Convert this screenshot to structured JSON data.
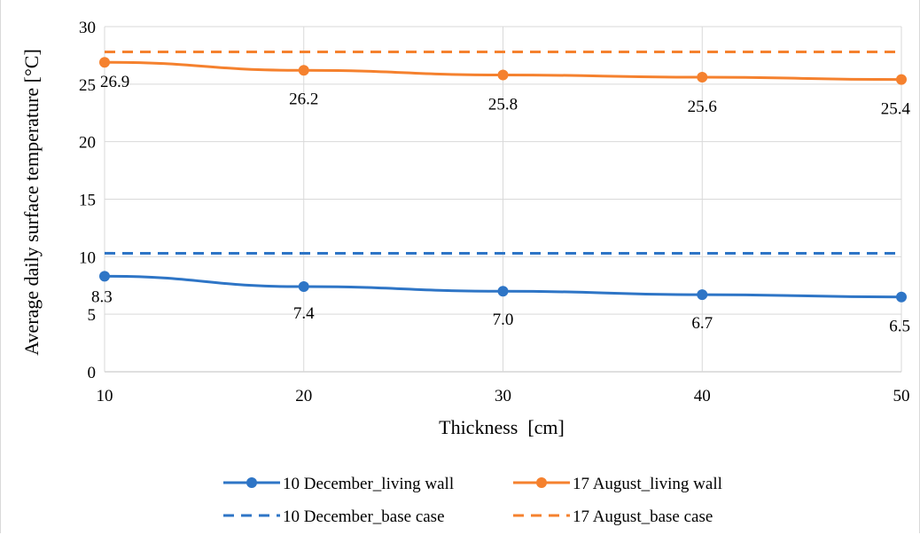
{
  "chart_data": {
    "type": "line",
    "xlabel": "Thickness  [cm]",
    "ylabel": "Average daily surface temperature [°C]",
    "x": [
      10,
      20,
      30,
      40,
      50
    ],
    "xlim": [
      10,
      50
    ],
    "ylim": [
      0,
      30
    ],
    "yticks": [
      0,
      5,
      10,
      15,
      20,
      25,
      30
    ],
    "grid": true,
    "legend_position": "bottom",
    "series": [
      {
        "name": "10 December_living wall",
        "values": [
          8.3,
          7.4,
          7.0,
          6.7,
          6.5
        ],
        "labels": [
          "8.3",
          "7.4",
          "7.0",
          "6.7",
          "6.5"
        ],
        "color": "#2e75c6",
        "style": "solid-markers"
      },
      {
        "name": "17 August_living wall",
        "values": [
          26.9,
          26.2,
          25.8,
          25.6,
          25.4
        ],
        "labels": [
          "26.9",
          "26.2",
          "25.8",
          "25.6",
          "25.4"
        ],
        "color": "#f5812e",
        "style": "solid-markers"
      },
      {
        "name": "10 December_base case",
        "values": [
          10.3,
          10.3,
          10.3,
          10.3,
          10.3
        ],
        "color": "#2e75c6",
        "style": "dashed"
      },
      {
        "name": "17 August_base case",
        "values": [
          27.8,
          27.8,
          27.8,
          27.8,
          27.8
        ],
        "color": "#f5812e",
        "style": "dashed"
      }
    ]
  }
}
